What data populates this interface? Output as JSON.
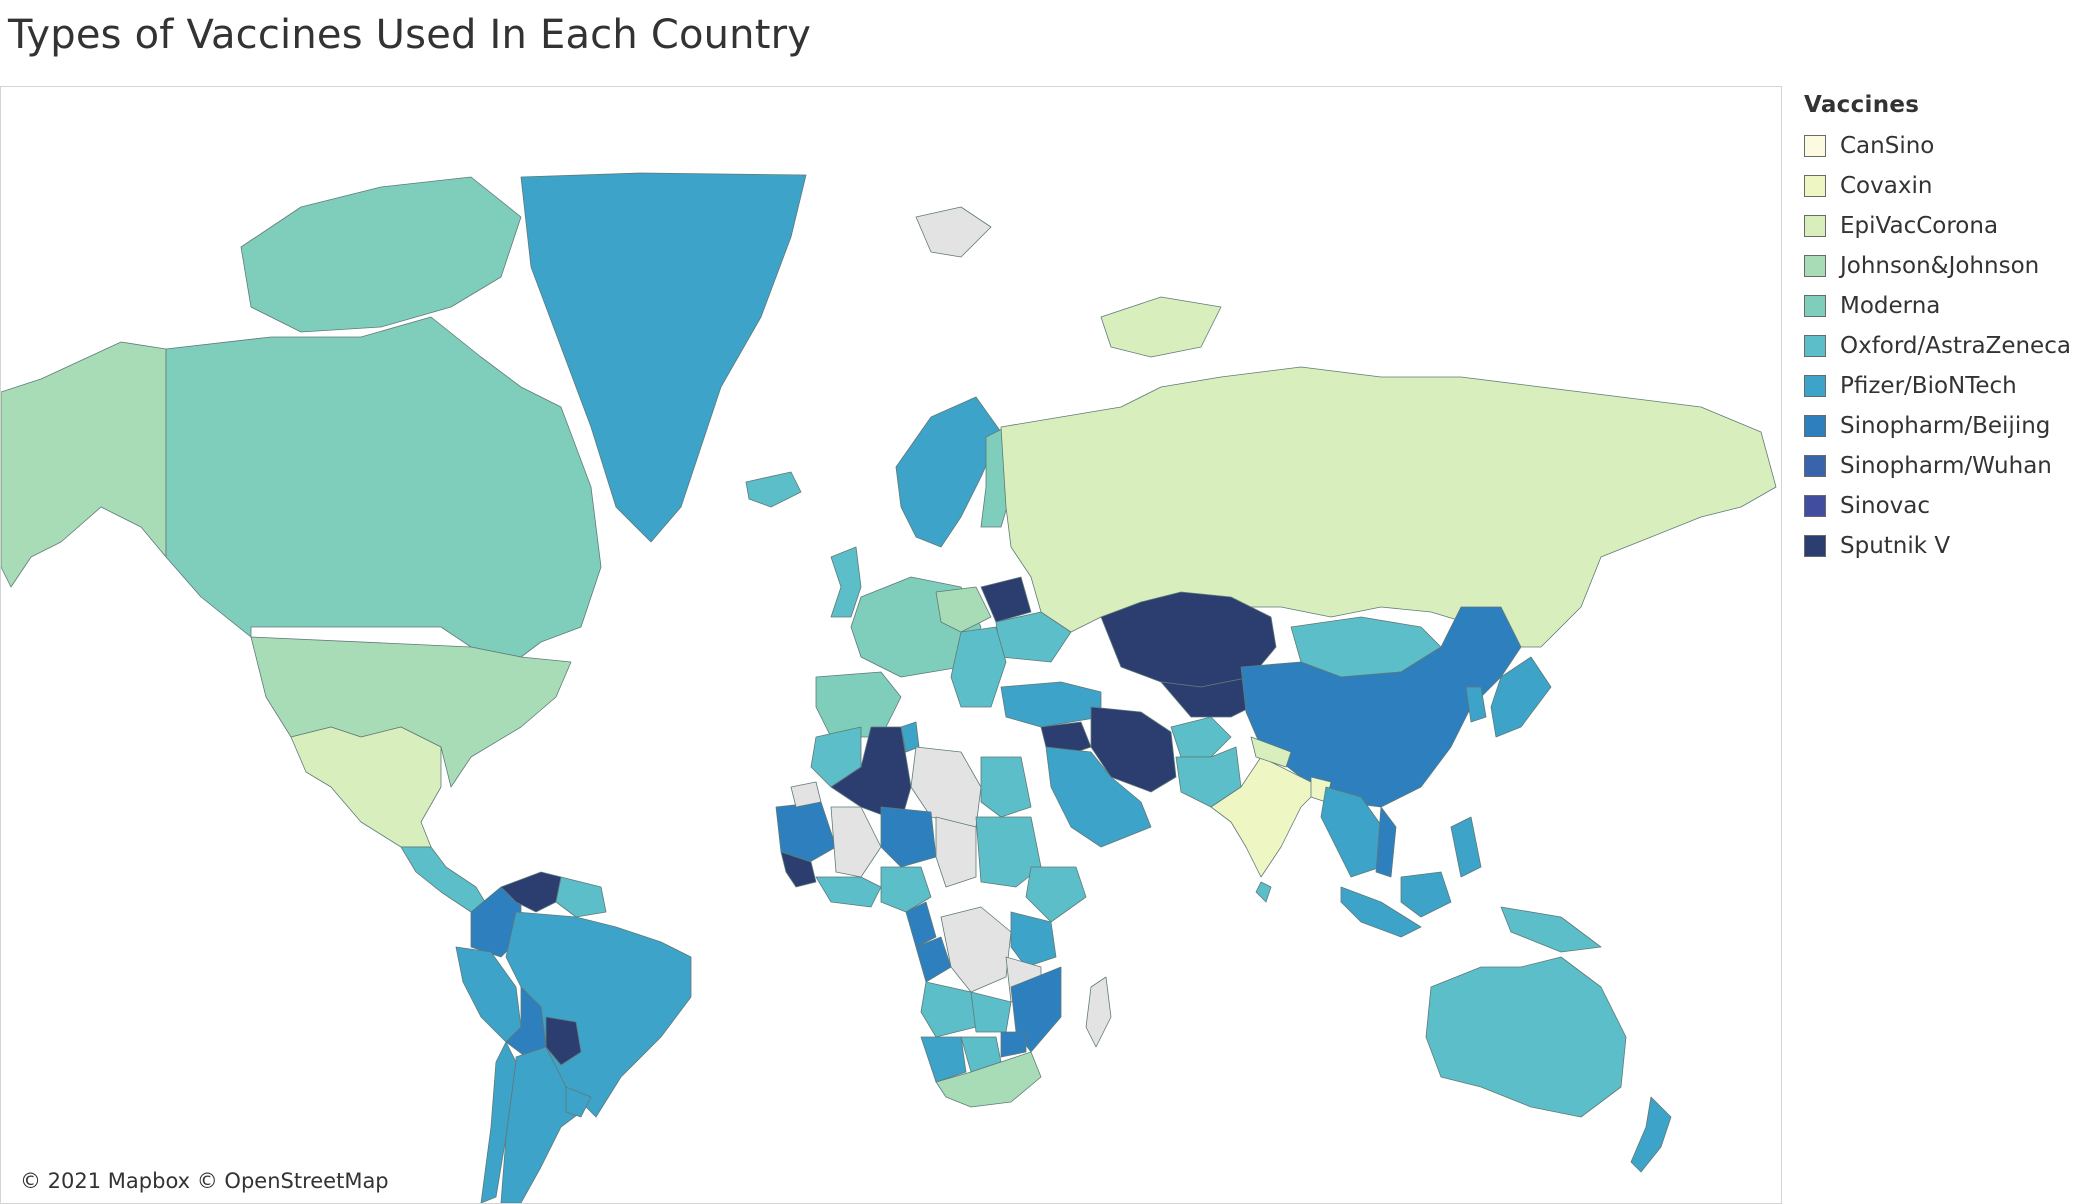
{
  "title": "Types of Vaccines Used In Each Country",
  "attribution": "© 2021 Mapbox © OpenStreetMap",
  "legend": {
    "title": "Vaccines",
    "items": [
      {
        "label": "CanSino",
        "color": "#fcfbe1"
      },
      {
        "label": "Covaxin",
        "color": "#eef6c4"
      },
      {
        "label": "EpiVacCorona",
        "color": "#d8efbd"
      },
      {
        "label": "Johnson&Johnson",
        "color": "#a8dcb6"
      },
      {
        "label": "Moderna",
        "color": "#7fcdbb"
      },
      {
        "label": "Oxford/AstraZeneca",
        "color": "#5bbec8"
      },
      {
        "label": "Pfizer/BioNTech",
        "color": "#3ea3c8"
      },
      {
        "label": "Sinopharm/Beijing",
        "color": "#2e7fbd"
      },
      {
        "label": "Sinopharm/Wuhan",
        "color": "#3964ac"
      },
      {
        "label": "Sinovac",
        "color": "#414ea0"
      },
      {
        "label": "Sputnik V",
        "color": "#2c3e70"
      }
    ]
  },
  "map": {
    "no_data_color": "#e3e3e3",
    "regions": [
      {
        "name": "Alaska",
        "vaccine": "Johnson&Johnson"
      },
      {
        "name": "Canada",
        "vaccine": "Moderna"
      },
      {
        "name": "Canadian Arctic",
        "vaccine": "Moderna"
      },
      {
        "name": "Greenland",
        "vaccine": "Pfizer/BioNTech"
      },
      {
        "name": "Iceland",
        "vaccine": "Oxford/AstraZeneca"
      },
      {
        "name": "United States",
        "vaccine": "Johnson&Johnson"
      },
      {
        "name": "Mexico",
        "vaccine": "EpiVacCorona"
      },
      {
        "name": "Central America",
        "vaccine": "Oxford/AstraZeneca"
      },
      {
        "name": "Colombia",
        "vaccine": "Sinopharm/Beijing"
      },
      {
        "name": "Venezuela",
        "vaccine": "Sputnik V"
      },
      {
        "name": "Guianas",
        "vaccine": "Oxford/AstraZeneca"
      },
      {
        "name": "Peru",
        "vaccine": "Pfizer/BioNTech"
      },
      {
        "name": "Brazil",
        "vaccine": "Pfizer/BioNTech"
      },
      {
        "name": "Bolivia",
        "vaccine": "Sinopharm/Beijing"
      },
      {
        "name": "Paraguay",
        "vaccine": "Sputnik V"
      },
      {
        "name": "Chile",
        "vaccine": "Pfizer/BioNTech"
      },
      {
        "name": "Argentina",
        "vaccine": "Pfizer/BioNTech"
      },
      {
        "name": "Uruguay",
        "vaccine": "Pfizer/BioNTech"
      },
      {
        "name": "Scandinavia",
        "vaccine": "Pfizer/BioNTech"
      },
      {
        "name": "Finland",
        "vaccine": "Moderna"
      },
      {
        "name": "United Kingdom",
        "vaccine": "Oxford/AstraZeneca"
      },
      {
        "name": "Western Europe",
        "vaccine": "Moderna"
      },
      {
        "name": "Iberia",
        "vaccine": "Moderna"
      },
      {
        "name": "Poland",
        "vaccine": "Johnson&Johnson"
      },
      {
        "name": "Belarus",
        "vaccine": "Sputnik V"
      },
      {
        "name": "Ukraine",
        "vaccine": "Oxford/AstraZeneca"
      },
      {
        "name": "Eastern Europe",
        "vaccine": "Oxford/AstraZeneca"
      },
      {
        "name": "Russia",
        "vaccine": "EpiVacCorona"
      },
      {
        "name": "Russian Far East",
        "vaccine": "EpiVacCorona"
      },
      {
        "name": "Kazakhstan",
        "vaccine": "Sputnik V"
      },
      {
        "name": "Central Asia",
        "vaccine": "Sputnik V"
      },
      {
        "name": "Turkey",
        "vaccine": "Pfizer/BioNTech"
      },
      {
        "name": "Levant",
        "vaccine": "Sputnik V"
      },
      {
        "name": "Iran",
        "vaccine": "Sputnik V"
      },
      {
        "name": "Afghanistan",
        "vaccine": "Oxford/AstraZeneca"
      },
      {
        "name": "Pakistan",
        "vaccine": "Oxford/AstraZeneca"
      },
      {
        "name": "Arabia",
        "vaccine": "Pfizer/BioNTech"
      },
      {
        "name": "Mongolia",
        "vaccine": "Oxford/AstraZeneca"
      },
      {
        "name": "China",
        "vaccine": "Sinopharm/Beijing"
      },
      {
        "name": "India",
        "vaccine": "Covaxin"
      },
      {
        "name": "Nepal",
        "vaccine": "EpiVacCorona"
      },
      {
        "name": "Bangladesh",
        "vaccine": "Covaxin"
      },
      {
        "name": "Sri Lanka",
        "vaccine": "Oxford/AstraZeneca"
      },
      {
        "name": "Southeast Asia",
        "vaccine": "Pfizer/BioNTech"
      },
      {
        "name": "Vietnam",
        "vaccine": "Sinopharm/Beijing"
      },
      {
        "name": "Korea",
        "vaccine": "Pfizer/BioNTech"
      },
      {
        "name": "Japan",
        "vaccine": "Pfizer/BioNTech"
      },
      {
        "name": "Philippines",
        "vaccine": "Pfizer/BioNTech"
      },
      {
        "name": "Indonesia",
        "vaccine": "Pfizer/BioNTech"
      },
      {
        "name": "Borneo",
        "vaccine": "Pfizer/BioNTech"
      },
      {
        "name": "New Guinea",
        "vaccine": "Oxford/AstraZeneca"
      },
      {
        "name": "Australia",
        "vaccine": "Oxford/AstraZeneca"
      },
      {
        "name": "New Zealand",
        "vaccine": "Pfizer/BioNTech"
      },
      {
        "name": "Morocco",
        "vaccine": "Oxford/AstraZeneca"
      },
      {
        "name": "Algeria",
        "vaccine": "Sputnik V"
      },
      {
        "name": "Tunisia",
        "vaccine": "Pfizer/BioNTech"
      },
      {
        "name": "Libya",
        "vaccine": "no data"
      },
      {
        "name": "Egypt",
        "vaccine": "Oxford/AstraZeneca"
      },
      {
        "name": "Mauritania",
        "vaccine": "Sinopharm/Beijing"
      },
      {
        "name": "Mali",
        "vaccine": "no data"
      },
      {
        "name": "Niger",
        "vaccine": "Sinopharm/Beijing"
      },
      {
        "name": "Chad",
        "vaccine": "no data"
      },
      {
        "name": "Sudan",
        "vaccine": "Oxford/AstraZeneca"
      },
      {
        "name": "Ethiopia",
        "vaccine": "Oxford/AstraZeneca"
      },
      {
        "name": "Guinea",
        "vaccine": "Sputnik V"
      },
      {
        "name": "West Africa Coast",
        "vaccine": "Oxford/AstraZeneca"
      },
      {
        "name": "Nigeria",
        "vaccine": "Oxford/AstraZeneca"
      },
      {
        "name": "Cameroon",
        "vaccine": "Sinopharm/Beijing"
      },
      {
        "name": "Congo",
        "vaccine": "Sinopharm/Beijing"
      },
      {
        "name": "DR Congo",
        "vaccine": "no data"
      },
      {
        "name": "Kenya",
        "vaccine": "Pfizer/BioNTech"
      },
      {
        "name": "Tanzania",
        "vaccine": "no data"
      },
      {
        "name": "Angola",
        "vaccine": "Oxford/AstraZeneca"
      },
      {
        "name": "Zambia",
        "vaccine": "Oxford/AstraZeneca"
      },
      {
        "name": "Mozambique",
        "vaccine": "Sinopharm/Beijing"
      },
      {
        "name": "Namibia",
        "vaccine": "Pfizer/BioNTech"
      },
      {
        "name": "Botswana",
        "vaccine": "Oxford/AstraZeneca"
      },
      {
        "name": "Zimbabwe",
        "vaccine": "Sinopharm/Beijing"
      },
      {
        "name": "South Africa",
        "vaccine": "Johnson&Johnson"
      },
      {
        "name": "Madagascar",
        "vaccine": "no data"
      },
      {
        "name": "Svalbard",
        "vaccine": "no data"
      },
      {
        "name": "Western Sahara",
        "vaccine": "no data"
      }
    ]
  }
}
